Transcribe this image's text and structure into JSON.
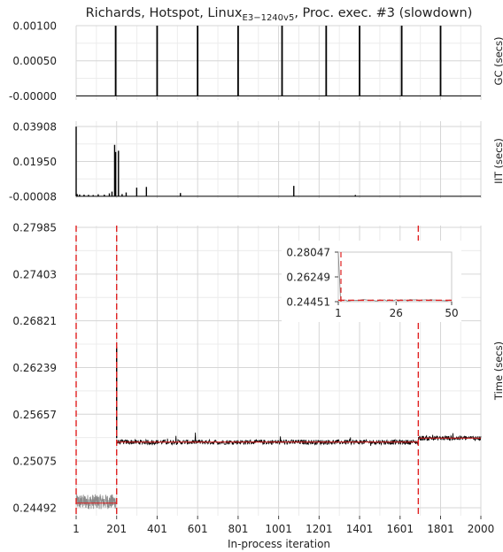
{
  "chart_data": {
    "type": "line",
    "title": {
      "prefix": "Richards, Hotspot, Linux",
      "subscript": "E3−1240v5",
      "suffix": ", Proc. exec. #3 (slowdown)"
    },
    "xlabel": "In-process iteration",
    "x_ticks": [
      "1",
      "201",
      "401",
      "601",
      "801",
      "1001",
      "1201",
      "1401",
      "1601",
      "1801",
      "2000"
    ],
    "xlim": [
      1,
      2000
    ],
    "grid": true,
    "panels": [
      {
        "id": "gc",
        "ylabel": "GC (secs)",
        "ylim": [
          -2e-05,
          0.001
        ],
        "y_ticks": [
          "0.00100",
          "0.00050",
          "-0.00000"
        ],
        "y_tick_values": [
          0.001,
          0.0005,
          0.0
        ],
        "spike_iterations": [
          196,
          401,
          601,
          801,
          1018,
          1236,
          1401,
          1609,
          1801
        ],
        "spike_value": 0.001
      },
      {
        "id": "iit",
        "ylabel": "IIT (secs)",
        "ylim": [
          -8e-05,
          0.03908
        ],
        "y_ticks": [
          "0.03908",
          "0.01950",
          "-0.00008"
        ],
        "y_tick_values": [
          0.03908,
          0.0195,
          -8e-05
        ],
        "spikes": [
          {
            "x": 1,
            "y": 0.039
          },
          {
            "x": 6,
            "y": 0.0012
          },
          {
            "x": 18,
            "y": 0.001
          },
          {
            "x": 40,
            "y": 0.0009
          },
          {
            "x": 62,
            "y": 0.0008
          },
          {
            "x": 85,
            "y": 0.0007
          },
          {
            "x": 110,
            "y": 0.0011
          },
          {
            "x": 140,
            "y": 0.0009
          },
          {
            "x": 165,
            "y": 0.0016
          },
          {
            "x": 178,
            "y": 0.0026
          },
          {
            "x": 191,
            "y": 0.0288
          },
          {
            "x": 196,
            "y": 0.0248
          },
          {
            "x": 210,
            "y": 0.0255
          },
          {
            "x": 228,
            "y": 0.0012
          },
          {
            "x": 248,
            "y": 0.0021
          },
          {
            "x": 300,
            "y": 0.0048
          },
          {
            "x": 348,
            "y": 0.0052
          },
          {
            "x": 516,
            "y": 0.0018
          },
          {
            "x": 1076,
            "y": 0.0058
          },
          {
            "x": 1380,
            "y": 0.0007
          }
        ]
      },
      {
        "id": "time",
        "ylabel": "Time (secs)",
        "ylim": [
          0.24492,
          0.27985
        ],
        "y_ticks": [
          "0.27985",
          "0.27403",
          "0.26821",
          "0.26239",
          "0.25657",
          "0.25075",
          "0.24492"
        ],
        "y_tick_values": [
          0.27985,
          0.27403,
          0.26821,
          0.26239,
          0.25657,
          0.25075,
          0.24492
        ],
        "changepoints": [
          1,
          201,
          1691
        ],
        "segment_means": [
          {
            "x_start": 1,
            "x_end": 201,
            "y": 0.2455
          },
          {
            "x_start": 201,
            "x_end": 1691,
            "y": 0.2531
          },
          {
            "x_start": 1691,
            "x_end": 2000,
            "y": 0.2536
          }
        ],
        "warmup_band": {
          "x_start": 1,
          "x_end": 201,
          "y_low": 0.24475,
          "y_high": 0.2466
        },
        "spike": {
          "x": 201,
          "y": 0.26497
        },
        "steady_level": 0.2531,
        "late_level": 0.2536,
        "inset": {
          "x_ticks": [
            "1",
            "26",
            "50"
          ],
          "x_tick_values": [
            1,
            26,
            50
          ],
          "xlim": [
            1,
            50
          ],
          "y_ticks": [
            "0.28047",
            "0.26249",
            "0.24451"
          ],
          "y_tick_values": [
            0.28047,
            0.26249,
            0.24451
          ],
          "ylim": [
            0.24451,
            0.28047
          ],
          "first_value": 0.28,
          "level": 0.2455,
          "changepoint": 1
        }
      }
    ]
  }
}
